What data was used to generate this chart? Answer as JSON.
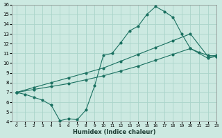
{
  "bg_color": "#cce9e1",
  "grid_color": "#aad4ca",
  "line_color": "#1a7060",
  "marker_color": "#1a7060",
  "line1_x": [
    0,
    1,
    2,
    3,
    4,
    5,
    6,
    7,
    8,
    9,
    10,
    11,
    12,
    13,
    14,
    15,
    16,
    17,
    18,
    19,
    20,
    21,
    22,
    23
  ],
  "line1_y": [
    7.0,
    6.8,
    6.5,
    6.2,
    5.7,
    4.1,
    4.3,
    4.2,
    5.2,
    7.7,
    10.8,
    11.0,
    12.1,
    13.3,
    13.8,
    15.0,
    15.8,
    15.3,
    14.7,
    13.0,
    11.5,
    11.1,
    10.8,
    10.7
  ],
  "line2_x": [
    0,
    2,
    4,
    6,
    8,
    10,
    12,
    14,
    16,
    18,
    20,
    22,
    23
  ],
  "line2_y": [
    7.0,
    7.3,
    7.6,
    7.9,
    8.3,
    8.7,
    9.2,
    9.7,
    10.3,
    10.9,
    11.5,
    10.5,
    10.7
  ],
  "line3_x": [
    0,
    2,
    4,
    6,
    8,
    10,
    12,
    14,
    16,
    18,
    20,
    22,
    23
  ],
  "line3_y": [
    7.0,
    7.5,
    8.0,
    8.5,
    9.0,
    9.5,
    10.2,
    10.9,
    11.6,
    12.3,
    13.0,
    10.7,
    10.8
  ],
  "xlabel": "Humidex (Indice chaleur)",
  "ylim": [
    4,
    16
  ],
  "xlim": [
    -0.5,
    23
  ],
  "xticks": [
    0,
    1,
    2,
    3,
    4,
    5,
    6,
    7,
    8,
    9,
    10,
    11,
    12,
    13,
    14,
    15,
    16,
    17,
    18,
    19,
    20,
    21,
    22,
    23
  ],
  "yticks": [
    4,
    5,
    6,
    7,
    8,
    9,
    10,
    11,
    12,
    13,
    14,
    15,
    16
  ]
}
